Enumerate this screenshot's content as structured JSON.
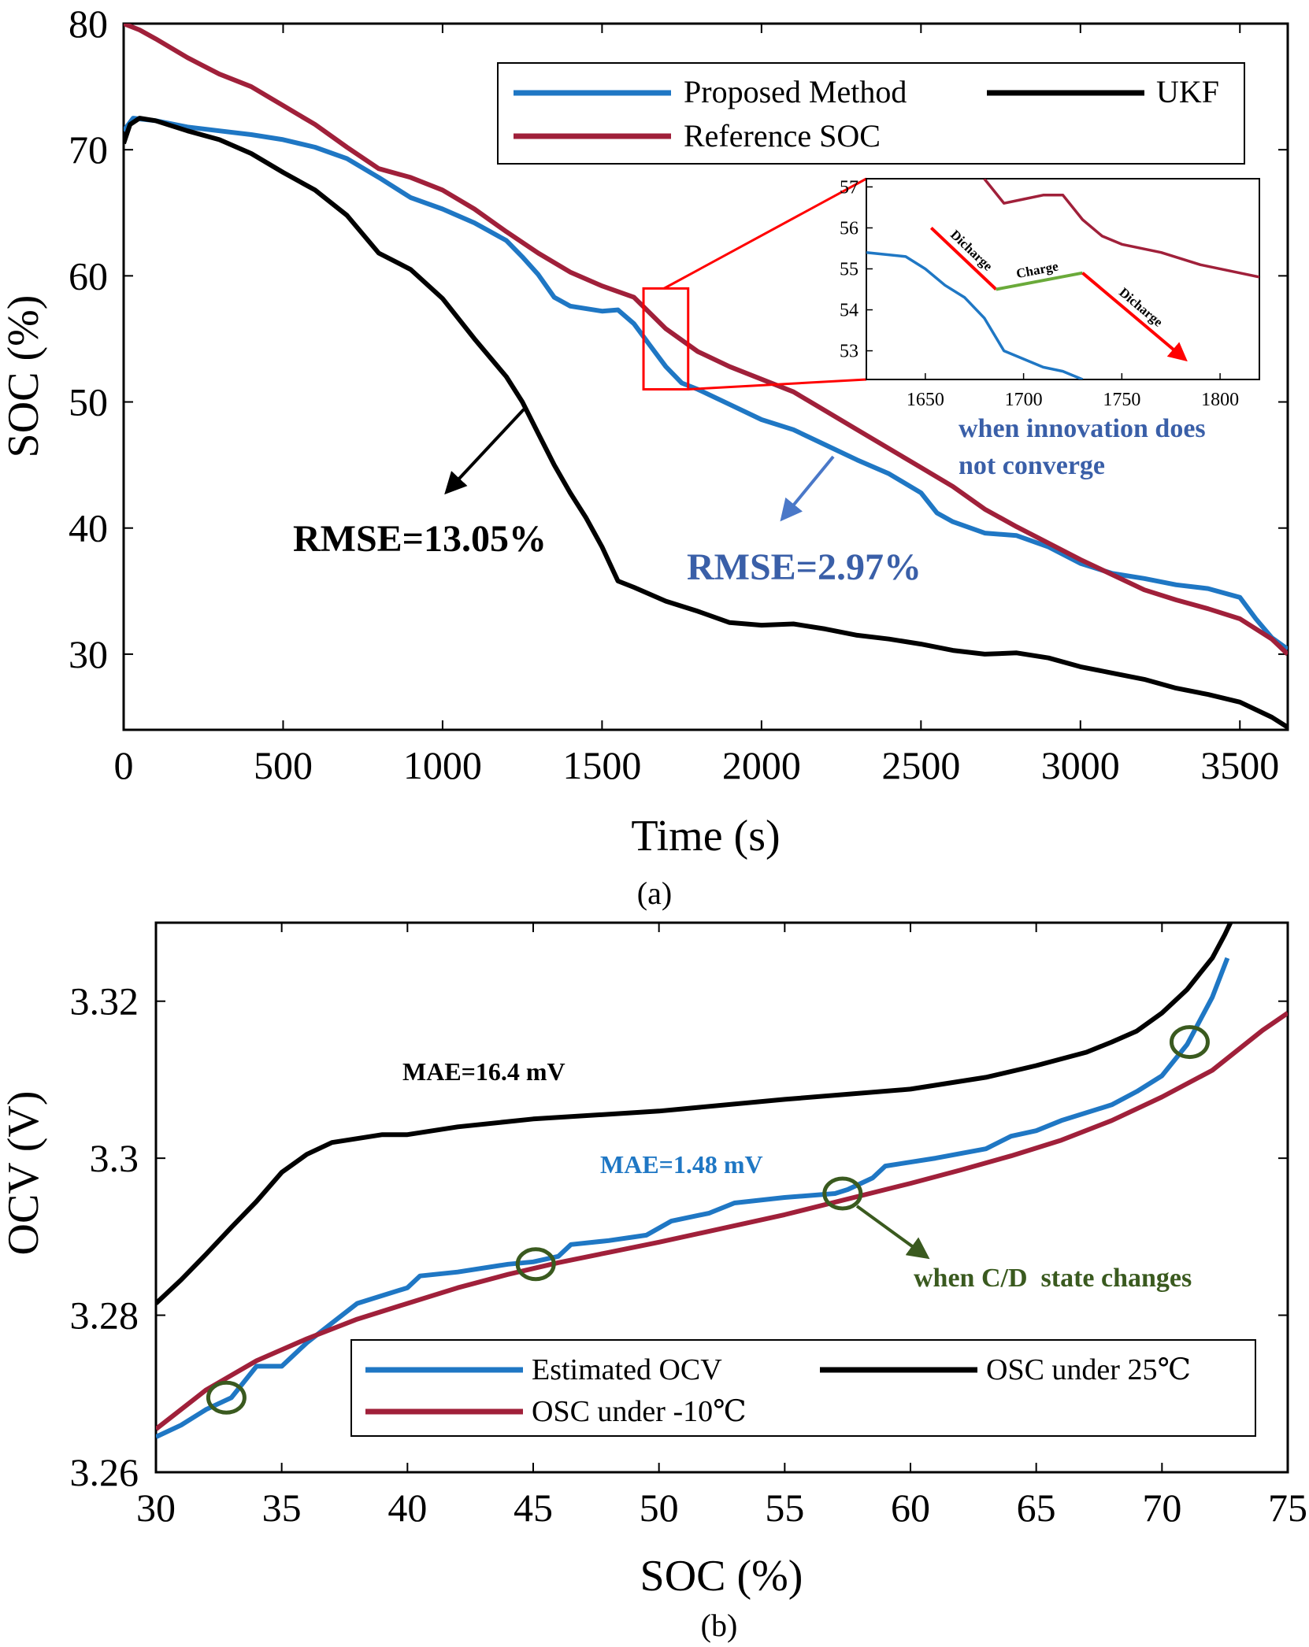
{
  "chart_data": [
    {
      "panel": "a",
      "type": "line",
      "caption": "(a)",
      "xlabel": "Time (s)",
      "ylabel": "SOC (%)",
      "xlim": [
        0,
        3650
      ],
      "ylim": [
        24,
        80
      ],
      "xticks": [
        0,
        500,
        1000,
        1500,
        2000,
        2500,
        3000,
        3500
      ],
      "yticks": [
        30,
        40,
        50,
        60,
        70,
        80
      ],
      "legend": {
        "position": "top-right",
        "entries": [
          {
            "label": "Proposed Method",
            "color": "#1f77c4"
          },
          {
            "label": "UKF",
            "color": "#000000"
          },
          {
            "label": "Reference SOC",
            "color": "#a0203a"
          }
        ]
      },
      "series": [
        {
          "name": "Proposed Method",
          "color": "#1f77c4",
          "x": [
            0,
            30,
            100,
            200,
            300,
            400,
            500,
            600,
            700,
            800,
            900,
            1000,
            1100,
            1200,
            1250,
            1300,
            1350,
            1400,
            1500,
            1550,
            1600,
            1650,
            1700,
            1750,
            1800,
            1900,
            2000,
            2100,
            2200,
            2300,
            2400,
            2500,
            2550,
            2600,
            2700,
            2800,
            2900,
            3000,
            3100,
            3200,
            3300,
            3400,
            3500,
            3550,
            3600,
            3650
          ],
          "y": [
            71.5,
            72.5,
            72.3,
            71.8,
            71.5,
            71.2,
            70.8,
            70.2,
            69.3,
            67.8,
            66.2,
            65.3,
            64.2,
            62.8,
            61.5,
            60.1,
            58.3,
            57.6,
            57.2,
            57.3,
            56.2,
            54.5,
            52.8,
            51.5,
            51.0,
            49.8,
            48.6,
            47.8,
            46.6,
            45.4,
            44.3,
            42.8,
            41.2,
            40.5,
            39.6,
            39.4,
            38.5,
            37.2,
            36.4,
            36.0,
            35.5,
            35.2,
            34.5,
            32.8,
            31.3,
            30.4
          ]
        },
        {
          "name": "UKF",
          "color": "#000000",
          "x": [
            0,
            20,
            50,
            100,
            200,
            300,
            400,
            500,
            600,
            700,
            800,
            900,
            1000,
            1100,
            1200,
            1250,
            1300,
            1350,
            1400,
            1450,
            1500,
            1550,
            1600,
            1700,
            1800,
            1900,
            2000,
            2100,
            2200,
            2300,
            2400,
            2500,
            2600,
            2700,
            2800,
            2900,
            3000,
            3100,
            3200,
            3300,
            3400,
            3500,
            3600,
            3650
          ],
          "y": [
            70.5,
            72.0,
            72.5,
            72.3,
            71.5,
            70.8,
            69.7,
            68.2,
            66.8,
            64.8,
            61.8,
            60.5,
            58.2,
            55.0,
            52.0,
            50.0,
            47.5,
            45.0,
            42.8,
            40.8,
            38.5,
            35.8,
            35.3,
            34.2,
            33.4,
            32.5,
            32.3,
            32.4,
            32.0,
            31.5,
            31.2,
            30.8,
            30.3,
            30.0,
            30.1,
            29.7,
            29.0,
            28.5,
            28.0,
            27.3,
            26.8,
            26.2,
            25.0,
            24.2
          ]
        },
        {
          "name": "Reference SOC",
          "color": "#a0203a",
          "x": [
            0,
            50,
            100,
            200,
            300,
            400,
            500,
            600,
            700,
            800,
            900,
            1000,
            1100,
            1200,
            1300,
            1400,
            1500,
            1600,
            1700,
            1800,
            1900,
            2000,
            2100,
            2200,
            2300,
            2400,
            2500,
            2600,
            2700,
            2800,
            2900,
            3000,
            3100,
            3200,
            3300,
            3400,
            3500,
            3600,
            3650
          ],
          "y": [
            80.0,
            79.5,
            78.8,
            77.3,
            76.0,
            75.0,
            73.5,
            72.0,
            70.2,
            68.5,
            67.8,
            66.8,
            65.3,
            63.5,
            61.8,
            60.3,
            59.2,
            58.3,
            55.8,
            54.0,
            52.8,
            51.8,
            50.8,
            49.3,
            47.8,
            46.3,
            44.8,
            43.3,
            41.5,
            40.1,
            38.8,
            37.5,
            36.3,
            35.1,
            34.3,
            33.6,
            32.8,
            31.2,
            30.0
          ]
        }
      ],
      "highlight_box": {
        "x": [
          1630,
          1770
        ],
        "y": [
          51,
          59
        ]
      },
      "inset": {
        "xlim": [
          1620,
          1820
        ],
        "ylim": [
          52.3,
          57.2
        ],
        "xticks": [
          1650,
          1700,
          1750,
          1800
        ],
        "yticks": [
          53,
          54,
          55,
          56,
          57
        ],
        "series": [
          {
            "name": "Proposed Method",
            "color": "#1f77c4",
            "x": [
              1620,
              1640,
              1650,
              1660,
              1670,
              1680,
              1690,
              1700,
              1710,
              1720,
              1730
            ],
            "y": [
              55.4,
              55.3,
              55.0,
              54.6,
              54.3,
              53.8,
              53.0,
              52.8,
              52.6,
              52.5,
              52.3
            ]
          },
          {
            "name": "Reference SOC",
            "color": "#a0203a",
            "x": [
              1680,
              1690,
              1700,
              1710,
              1720,
              1730,
              1740,
              1750,
              1770,
              1790,
              1810,
              1820
            ],
            "y": [
              57.2,
              56.6,
              56.7,
              56.8,
              56.8,
              56.2,
              55.8,
              55.6,
              55.4,
              55.1,
              54.9,
              54.8
            ]
          }
        ],
        "arrows": [
          {
            "label": "Dicharge",
            "color": "#ff0000",
            "x": [
              1653,
              1686
            ],
            "y": [
              56.0,
              54.5
            ]
          },
          {
            "label": "Charge",
            "color": "#6aaa3a",
            "x": [
              1686,
              1730
            ],
            "y": [
              54.5,
              54.9
            ]
          },
          {
            "label": "Dicharge",
            "color": "#ff0000",
            "x": [
              1730,
              1782
            ],
            "y": [
              54.9,
              52.8
            ]
          }
        ]
      },
      "annotations": [
        {
          "text": "RMSE=13.05%",
          "color": "#000000"
        },
        {
          "text": "RMSE=2.97%",
          "color": "#3a5fa8"
        },
        {
          "text": "when innovation does",
          "color": "#3a5fa8"
        },
        {
          "text": "not converge",
          "color": "#3a5fa8"
        }
      ]
    },
    {
      "panel": "b",
      "type": "line",
      "caption": "(b)",
      "xlabel": "SOC (%)",
      "ylabel": "OCV (V)",
      "xlim": [
        30,
        75
      ],
      "ylim": [
        3.26,
        3.33
      ],
      "xticks": [
        30,
        35,
        40,
        45,
        50,
        55,
        60,
        65,
        70,
        75
      ],
      "yticks": [
        3.26,
        3.28,
        3.3,
        3.32
      ],
      "ytick_labels": [
        "3.26",
        "3.28",
        "3.3",
        "3.32"
      ],
      "legend": {
        "position": "bottom-right",
        "entries": [
          {
            "label": "Estimated OCV",
            "color": "#1f77c4"
          },
          {
            "label": "OSC under 25℃",
            "color": "#000000"
          },
          {
            "label": "OSC under -10℃",
            "color": "#a0203a"
          }
        ]
      },
      "series": [
        {
          "name": "Estimated OCV",
          "color": "#1f77c4",
          "x": [
            30,
            31,
            32,
            33,
            34,
            35,
            36,
            37,
            38,
            39,
            40,
            40.5,
            42,
            44,
            45,
            46,
            46.5,
            48,
            49.5,
            50.5,
            52,
            53,
            55,
            57,
            57.5,
            58.5,
            59,
            61,
            63,
            64,
            65,
            66,
            68,
            69,
            70,
            71,
            72,
            72.6
          ],
          "y": [
            3.2645,
            3.266,
            3.268,
            3.2695,
            3.2735,
            3.2735,
            3.2765,
            3.279,
            3.2815,
            3.2825,
            3.2835,
            3.285,
            3.2855,
            3.2865,
            3.2868,
            3.2875,
            3.289,
            3.2895,
            3.2902,
            3.292,
            3.293,
            3.2943,
            3.295,
            3.2955,
            3.296,
            3.2975,
            3.299,
            3.3,
            3.3012,
            3.3028,
            3.3035,
            3.3048,
            3.3068,
            3.3085,
            3.3105,
            3.3145,
            3.3205,
            3.3255
          ]
        },
        {
          "name": "OSC under 25℃",
          "color": "#000000",
          "x": [
            30,
            31,
            32,
            33,
            34,
            35,
            36,
            37,
            38,
            39,
            40,
            42,
            45,
            50,
            55,
            60,
            63,
            65,
            67,
            68,
            69,
            70,
            71,
            71.5,
            72,
            72.5,
            72.8
          ],
          "y": [
            3.2815,
            3.2845,
            3.2878,
            3.2912,
            3.2945,
            3.2982,
            3.3005,
            3.302,
            3.3025,
            3.303,
            3.303,
            3.304,
            3.305,
            3.306,
            3.3075,
            3.3088,
            3.3103,
            3.3118,
            3.3135,
            3.3148,
            3.3162,
            3.3185,
            3.3215,
            3.3235,
            3.3255,
            3.3285,
            3.3305
          ]
        },
        {
          "name": "OSC under -10℃",
          "color": "#a0203a",
          "x": [
            30,
            32,
            34,
            36,
            38,
            40,
            42,
            44,
            46,
            48,
            50,
            52,
            55,
            58,
            60,
            62,
            64,
            66,
            68,
            70,
            72,
            74,
            75
          ],
          "y": [
            3.2655,
            3.2705,
            3.2742,
            3.277,
            3.2795,
            3.2815,
            3.2835,
            3.2852,
            3.2867,
            3.288,
            3.2893,
            3.2907,
            3.2928,
            3.2952,
            3.2968,
            3.2985,
            3.3003,
            3.3023,
            3.3048,
            3.3078,
            3.3112,
            3.3163,
            3.3185
          ]
        }
      ],
      "markers": [
        {
          "x": 32.8,
          "y": 3.2695,
          "shape": "circle",
          "color": "#3a5a1f"
        },
        {
          "x": 45.1,
          "y": 3.2865,
          "shape": "circle",
          "color": "#3a5a1f"
        },
        {
          "x": 57.3,
          "y": 3.2955,
          "shape": "circle",
          "color": "#3a5a1f"
        },
        {
          "x": 71.1,
          "y": 3.3148,
          "shape": "circle",
          "color": "#3a5a1f"
        }
      ],
      "annotations": [
        {
          "text": "MAE=16.4 mV",
          "color": "#000000"
        },
        {
          "text": "MAE=1.48 mV",
          "color": "#1f77c4"
        },
        {
          "text": "when C/D  state changes",
          "color": "#3a5a1f"
        }
      ]
    }
  ]
}
